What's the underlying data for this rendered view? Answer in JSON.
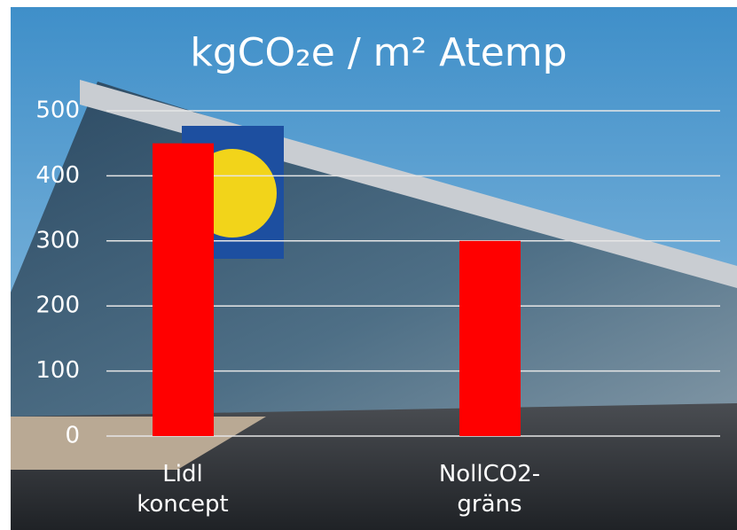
{
  "chart_data": {
    "type": "bar",
    "title": "kgCO₂e / m² Atemp",
    "categories": [
      "Lidl koncept",
      "NollCO2-gräns"
    ],
    "values": [
      450,
      300
    ],
    "color": "#ff0000",
    "ylim": [
      0,
      500
    ],
    "yticks": [
      0,
      100,
      200,
      300,
      400,
      500
    ],
    "grid": true
  }
}
